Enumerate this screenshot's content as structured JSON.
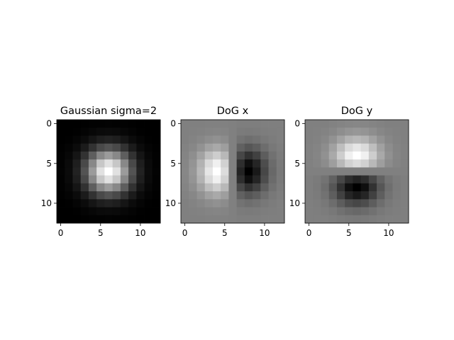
{
  "chart_data": [
    {
      "type": "heatmap",
      "title": "Gaussian sigma=2",
      "xlabel": "",
      "ylabel": "",
      "grid": false,
      "colormap": "gray",
      "x_range": [
        -0.5,
        12.5
      ],
      "y_range": [
        12.5,
        -0.5
      ],
      "x_ticks": [
        0,
        5,
        10
      ],
      "y_ticks": [
        0,
        5,
        10
      ],
      "x_tick_labels": [
        "0",
        "5",
        "10"
      ],
      "y_tick_labels": [
        "0",
        "5",
        "10"
      ],
      "kernel": "gaussian",
      "sigma": 2,
      "center": [
        6,
        6
      ],
      "size": 13
    },
    {
      "type": "heatmap",
      "title": "DoG x",
      "xlabel": "",
      "ylabel": "",
      "grid": false,
      "colormap": "gray",
      "x_range": [
        -0.5,
        12.5
      ],
      "y_range": [
        12.5,
        -0.5
      ],
      "x_ticks": [
        0,
        5,
        10
      ],
      "y_ticks": [
        0,
        5,
        10
      ],
      "x_tick_labels": [
        "0",
        "5",
        "10"
      ],
      "y_tick_labels": [
        "0",
        "5",
        "10"
      ],
      "kernel": "dog_x",
      "sigma": 2,
      "center": [
        6,
        6
      ],
      "size": 13
    },
    {
      "type": "heatmap",
      "title": "DoG y",
      "xlabel": "",
      "ylabel": "",
      "grid": false,
      "colormap": "gray",
      "x_range": [
        -0.5,
        12.5
      ],
      "y_range": [
        12.5,
        -0.5
      ],
      "x_ticks": [
        0,
        5,
        10
      ],
      "y_ticks": [
        0,
        5,
        10
      ],
      "x_tick_labels": [
        "0",
        "5",
        "10"
      ],
      "y_tick_labels": [
        "0",
        "5",
        "10"
      ],
      "kernel": "dog_y",
      "sigma": 2,
      "center": [
        6,
        6
      ],
      "size": 13
    }
  ]
}
